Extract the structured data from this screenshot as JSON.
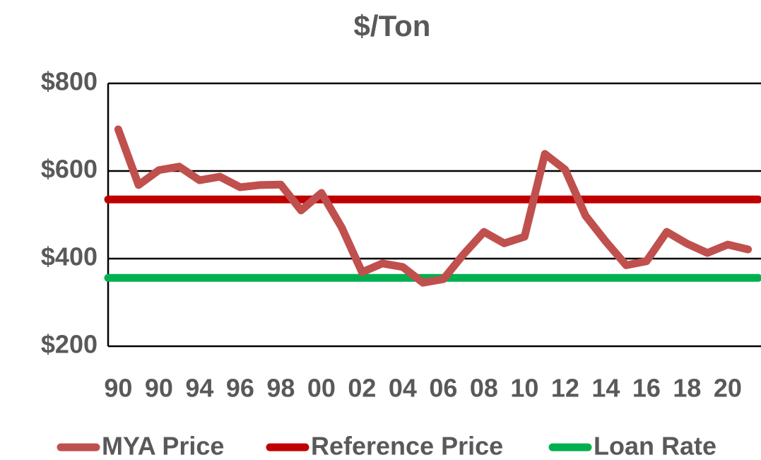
{
  "chart_data": {
    "type": "line",
    "title": "$/Ton",
    "categories": [
      "90",
      null,
      "90",
      null,
      "94",
      null,
      "96",
      null,
      "98",
      null,
      "00",
      null,
      "02",
      null,
      "04",
      null,
      "06",
      null,
      "08",
      null,
      "10",
      null,
      "12",
      null,
      "14",
      null,
      "16",
      null,
      "18",
      null,
      "20",
      null
    ],
    "series": [
      {
        "name": "MYA Price",
        "color": "#c0504d",
        "values": [
          695,
          568,
          602,
          610,
          579,
          587,
          563,
          568,
          569,
          510,
          550,
          471,
          369,
          389,
          381,
          345,
          353,
          410,
          461,
          435,
          450,
          639,
          603,
          498,
          439,
          385,
          394,
          461,
          434,
          413,
          432,
          421
        ]
      },
      {
        "name": "Reference Price",
        "color": "#c00000",
        "values": [
          535,
          535,
          535,
          535,
          535,
          535,
          535,
          535,
          535,
          535,
          535,
          535,
          535,
          535,
          535,
          535,
          535,
          535,
          535,
          535,
          535,
          535,
          535,
          535,
          535,
          535,
          535,
          535,
          535,
          535,
          535,
          535
        ]
      },
      {
        "name": "Loan Rate",
        "color": "#00b050",
        "values": [
          356,
          356,
          356,
          356,
          356,
          356,
          356,
          356,
          356,
          356,
          356,
          356,
          356,
          356,
          356,
          356,
          356,
          356,
          356,
          356,
          356,
          356,
          356,
          356,
          356,
          356,
          356,
          356,
          356,
          356,
          356,
          356
        ]
      }
    ],
    "ylim": [
      200,
      800
    ],
    "yticks": [
      {
        "value": 200,
        "label": "$200"
      },
      {
        "value": 400,
        "label": "$400"
      },
      {
        "value": 600,
        "label": "$600"
      },
      {
        "value": 800,
        "label": "$800"
      }
    ],
    "grid": true,
    "legend": "bottom"
  }
}
